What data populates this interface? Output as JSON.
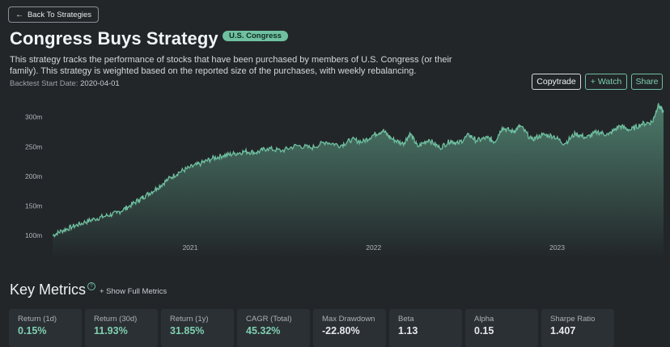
{
  "nav": {
    "back_label": "Back To Strategies"
  },
  "header": {
    "title": "Congress Buys Strategy",
    "badge": "U.S. Congress",
    "description": "This strategy tracks the performance of stocks that have been purchased by members of U.S. Congress (or their family). This strategy is weighted based on the reported size of the purchases, with weekly rebalancing.",
    "start_date_label": "Backtest Start Date:",
    "start_date_value": "2020-04-01"
  },
  "actions": {
    "copytrade": "Copytrade",
    "watch": "+ Watch",
    "share": "Share"
  },
  "colors": {
    "accent": "#6fc0a0",
    "background": "#222629",
    "card": "#2b3034"
  },
  "chart_data": {
    "type": "area",
    "y_ticks": [
      "300m",
      "250m",
      "200m",
      "150m",
      "100m"
    ],
    "y_tick_values": [
      300,
      250,
      200,
      150,
      100
    ],
    "x_ticks": [
      "2021",
      "2022",
      "2023"
    ],
    "x_tick_values": [
      2021.0,
      2022.0,
      2023.0
    ],
    "xlim": [
      2020.25,
      2023.58
    ],
    "ylim": [
      88,
      320
    ],
    "grid": false,
    "series": [
      {
        "x": [
          2020.25,
          2020.3,
          2020.36,
          2020.42,
          2020.48,
          2020.54,
          2020.6,
          2020.66,
          2020.72,
          2020.76,
          2020.82,
          2020.88,
          2020.94,
          2021.0,
          2021.06,
          2021.12,
          2021.18,
          2021.24,
          2021.3,
          2021.36,
          2021.42,
          2021.5,
          2021.58,
          2021.66,
          2021.74,
          2021.82,
          2021.88,
          2021.94,
          2022.0,
          2022.05,
          2022.1,
          2022.16,
          2022.2,
          2022.24,
          2022.3,
          2022.36,
          2022.42,
          2022.46,
          2022.52,
          2022.56,
          2022.62,
          2022.66,
          2022.7,
          2022.76,
          2022.8,
          2022.86,
          2022.92,
          2022.98,
          2023.04,
          2023.1,
          2023.16,
          2023.22,
          2023.28,
          2023.34,
          2023.4,
          2023.46,
          2023.52,
          2023.55,
          2023.58
        ],
        "values": [
          100,
          108,
          115,
          122,
          128,
          133,
          138,
          148,
          160,
          168,
          180,
          195,
          207,
          215,
          222,
          230,
          235,
          238,
          242,
          240,
          247,
          243,
          252,
          248,
          258,
          252,
          262,
          258,
          270,
          277,
          263,
          255,
          272,
          250,
          262,
          248,
          260,
          255,
          270,
          260,
          265,
          258,
          282,
          275,
          285,
          262,
          270,
          268,
          255,
          272,
          265,
          275,
          270,
          285,
          278,
          288,
          292,
          320,
          308
        ]
      }
    ]
  },
  "metrics": {
    "title": "Key Metrics",
    "help_glyph": "?",
    "show_full_label": "+ Show Full Metrics",
    "items": [
      {
        "label": "Return (1d)",
        "value": "0.15%"
      },
      {
        "label": "Return (30d)",
        "value": "11.93%"
      },
      {
        "label": "Return (1y)",
        "value": "31.85%"
      },
      {
        "label": "CAGR (Total)",
        "value": "45.32%"
      },
      {
        "label": "Max Drawdown",
        "value": "-22.80%"
      },
      {
        "label": "Beta",
        "value": "1.13"
      },
      {
        "label": "Alpha",
        "value": "0.15"
      },
      {
        "label": "Sharpe Ratio",
        "value": "1.407"
      }
    ]
  }
}
